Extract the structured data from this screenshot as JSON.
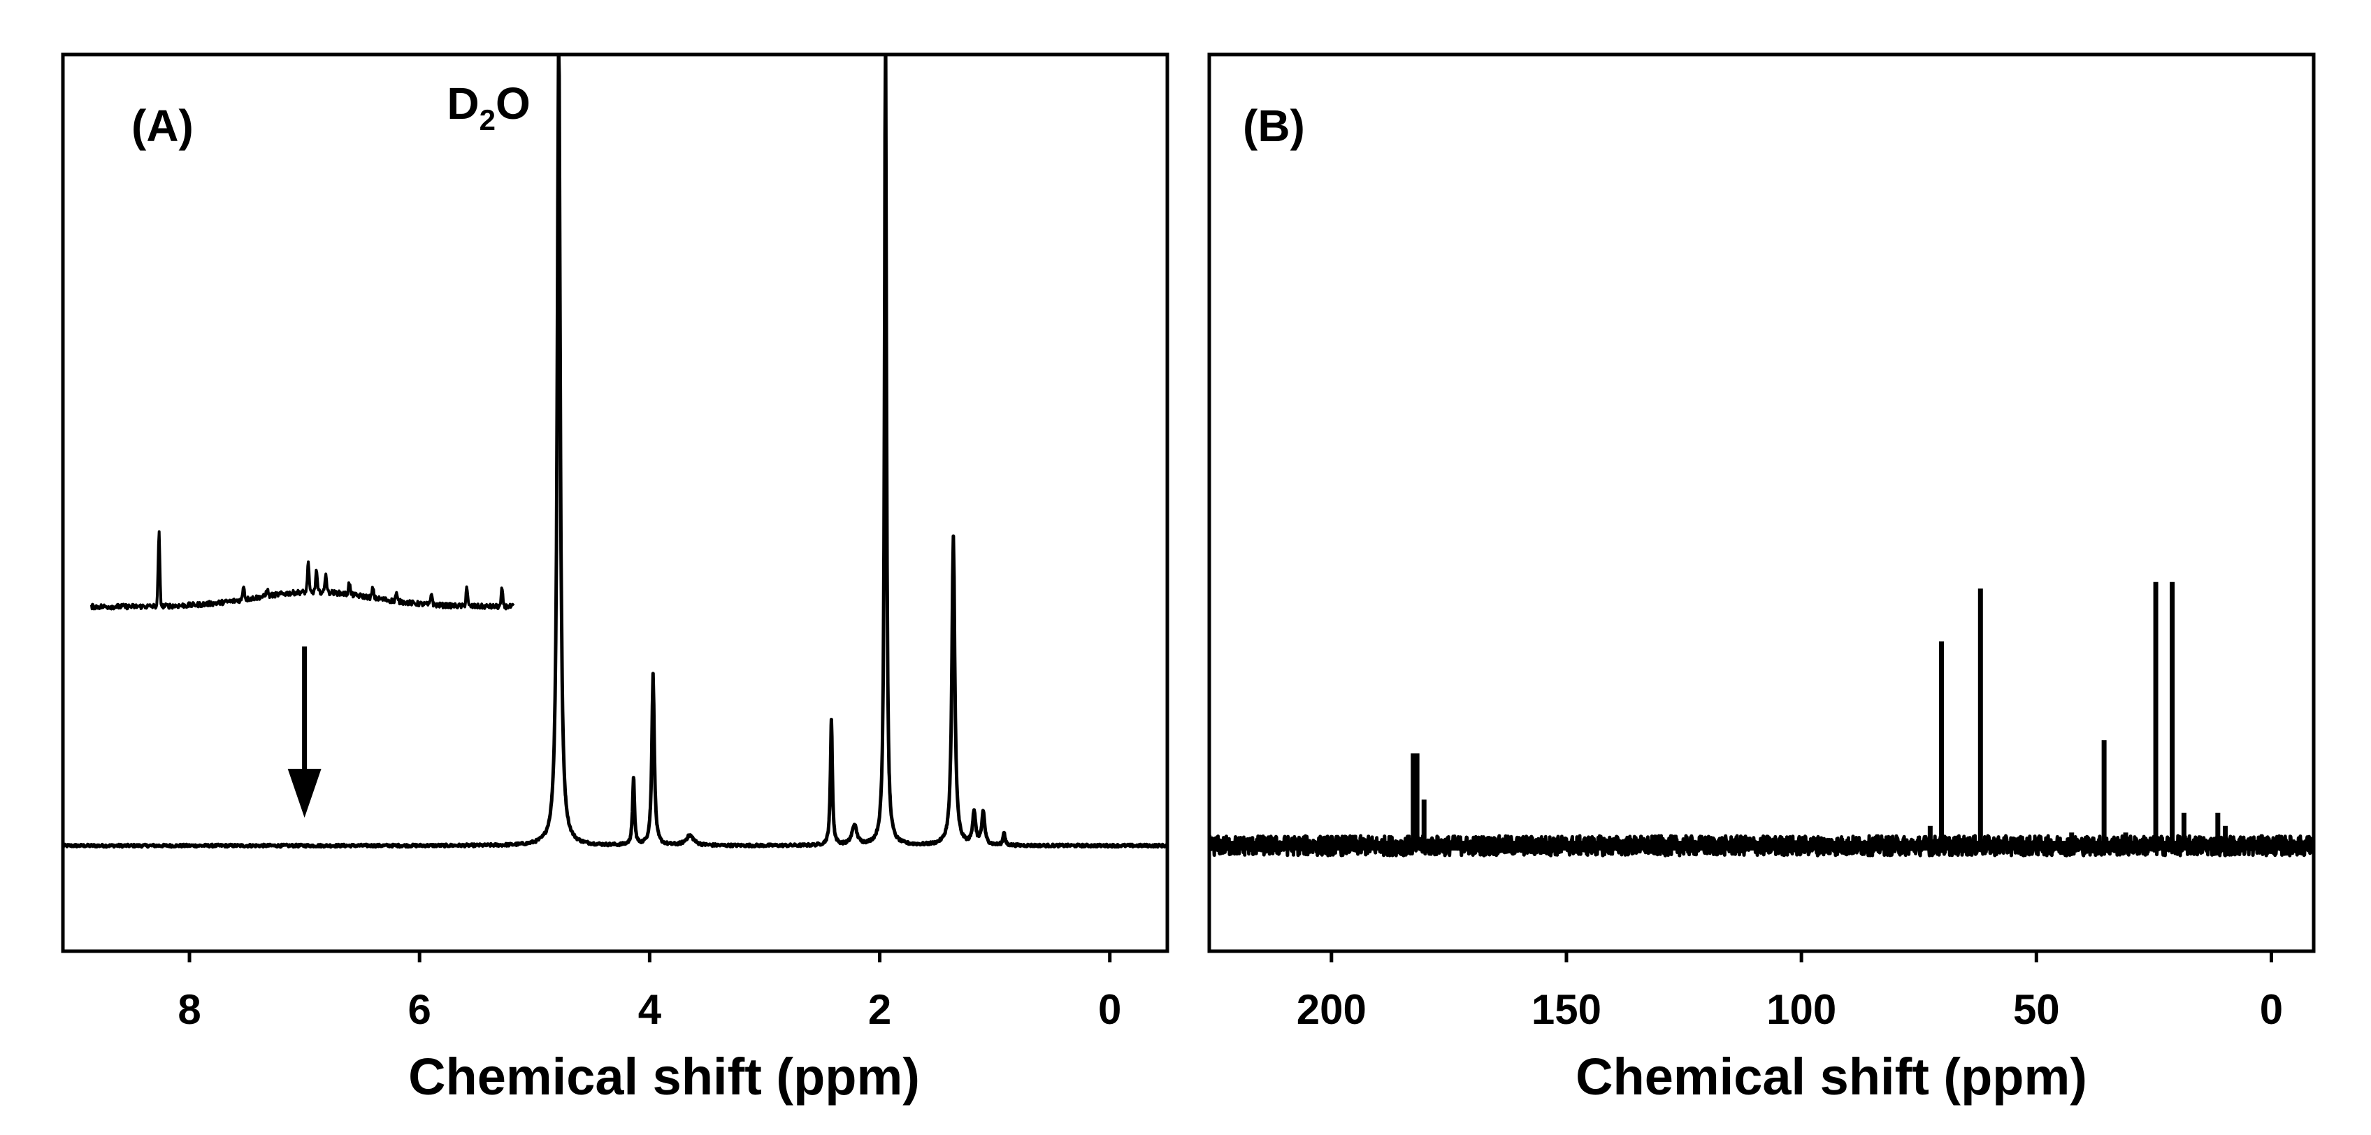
{
  "chart_data": [
    {
      "panel": "(A)",
      "type": "line",
      "xlabel": "Chemical shift (ppm)",
      "ylabel": "",
      "xlim": [
        9.1,
        -0.5
      ],
      "x_reversed": true,
      "xticks": [
        8,
        6,
        4,
        2,
        0
      ],
      "grid": false,
      "baseline": 0,
      "ylim": [
        -0.16,
        1.2
      ],
      "annotations": [
        {
          "text_main": "D",
          "text_sub": "2",
          "text_tail": "O",
          "x": 4.79
        }
      ],
      "peaks": [
        {
          "x": 4.79,
          "height": 1.25,
          "width": 0.03
        },
        {
          "x": 1.95,
          "height": 1.25,
          "width": 0.02
        },
        {
          "x": 1.36,
          "height": 0.47,
          "width": 0.03
        },
        {
          "x": 3.97,
          "height": 0.26,
          "width": 0.025
        },
        {
          "x": 4.14,
          "height": 0.1,
          "width": 0.02
        },
        {
          "x": 2.42,
          "height": 0.19,
          "width": 0.02
        },
        {
          "x": 2.22,
          "height": 0.03,
          "width": 0.05
        },
        {
          "x": 3.65,
          "height": 0.015,
          "width": 0.08
        },
        {
          "x": 1.18,
          "height": 0.05,
          "width": 0.03
        },
        {
          "x": 1.1,
          "height": 0.05,
          "width": 0.03
        },
        {
          "x": 0.92,
          "height": 0.02,
          "width": 0.02
        }
      ],
      "inset": {
        "description_x_range": [
          8.8,
          5.2
        ],
        "peaks": [
          {
            "x": 8.22,
            "height": 0.75
          },
          {
            "x": 7.5,
            "height": 0.15
          },
          {
            "x": 7.3,
            "height": 0.08
          },
          {
            "x": 6.95,
            "height": 0.3
          },
          {
            "x": 6.88,
            "height": 0.22
          },
          {
            "x": 6.8,
            "height": 0.2
          },
          {
            "x": 6.6,
            "height": 0.12
          },
          {
            "x": 6.4,
            "height": 0.1
          },
          {
            "x": 6.2,
            "height": 0.08
          },
          {
            "x": 5.9,
            "height": 0.12
          },
          {
            "x": 5.6,
            "height": 0.2
          },
          {
            "x": 5.3,
            "height": 0.18
          }
        ],
        "broad_hump": {
          "center": 6.9,
          "height": 0.15,
          "width": 0.7
        }
      },
      "arrow": {
        "x": 7.0,
        "direction": "down"
      }
    },
    {
      "panel": "(B)",
      "type": "line",
      "xlabel": "Chemical shift (ppm)",
      "ylabel": "",
      "xlim": [
        226,
        -9
      ],
      "x_reversed": true,
      "xticks": [
        200,
        150,
        100,
        50,
        0
      ],
      "grid": false,
      "baseline": 0,
      "ylim": [
        -0.16,
        1.2
      ],
      "peaks": [
        {
          "x": 182.6,
          "height": 0.14,
          "width": 0.5
        },
        {
          "x": 181.8,
          "height": 0.14,
          "width": 0.5
        },
        {
          "x": 180.3,
          "height": 0.07,
          "width": 0.4
        },
        {
          "x": 70.2,
          "height": 0.31,
          "width": 0.4
        },
        {
          "x": 61.9,
          "height": 0.39,
          "width": 0.4
        },
        {
          "x": 35.6,
          "height": 0.16,
          "width": 0.4
        },
        {
          "x": 24.6,
          "height": 0.4,
          "width": 0.4
        },
        {
          "x": 21.1,
          "height": 0.4,
          "width": 0.4
        },
        {
          "x": 18.6,
          "height": 0.05,
          "width": 0.4
        },
        {
          "x": 11.4,
          "height": 0.05,
          "width": 0.4
        },
        {
          "x": 9.8,
          "height": 0.03,
          "width": 0.4
        },
        {
          "x": 72.6,
          "height": 0.03,
          "width": 0.4
        },
        {
          "x": 42.5,
          "height": 0.02,
          "width": 0.4
        },
        {
          "x": 31.0,
          "height": 0.02,
          "width": 0.4
        }
      ]
    }
  ]
}
